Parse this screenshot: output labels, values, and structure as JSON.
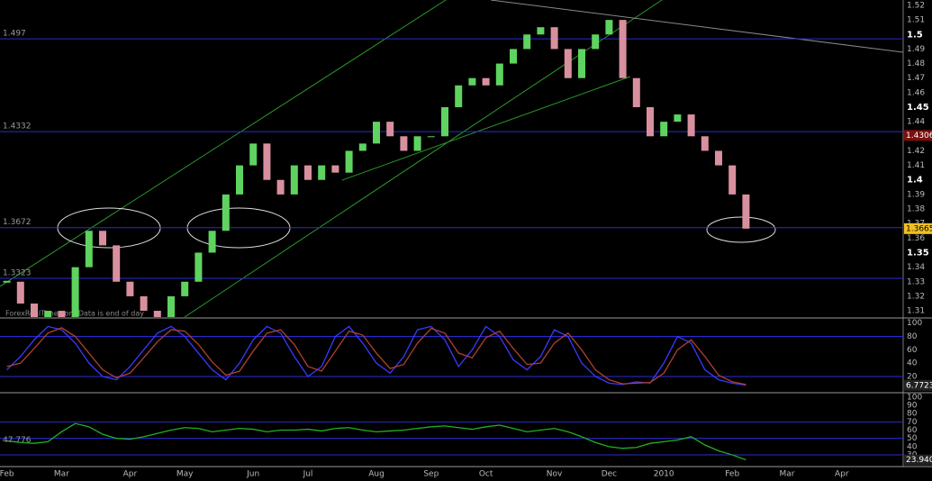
{
  "chart_data": [
    {
      "type": "candlestick",
      "watermark": "ForexRealTime.com  Data is end of day",
      "categories": [
        "Feb",
        null,
        null,
        null,
        "Mar",
        null,
        null,
        null,
        null,
        "Apr",
        null,
        null,
        null,
        "May",
        null,
        null,
        null,
        null,
        "Jun",
        null,
        null,
        null,
        "Jul",
        null,
        null,
        null,
        null,
        "Aug",
        null,
        null,
        null,
        "Sep",
        null,
        null,
        null,
        "Oct",
        null,
        null,
        null,
        null,
        "Nov",
        null,
        null,
        null,
        "Dec",
        null,
        null,
        null,
        "2010",
        null,
        null,
        null,
        null,
        "Feb",
        null,
        null,
        null,
        "Mar",
        null,
        null,
        null,
        "Apr",
        null,
        null,
        null,
        null
      ],
      "values": [
        1.33,
        1.315,
        1.305,
        1.31,
        1.3,
        1.34,
        1.365,
        1.355,
        1.33,
        1.32,
        1.31,
        1.305,
        1.32,
        1.33,
        1.35,
        1.365,
        1.39,
        1.41,
        1.425,
        1.4,
        1.39,
        1.41,
        1.4,
        1.41,
        1.405,
        1.42,
        1.425,
        1.44,
        1.43,
        1.42,
        1.43,
        1.43,
        1.45,
        1.465,
        1.47,
        1.465,
        1.48,
        1.49,
        1.5,
        1.505,
        1.49,
        1.47,
        1.49,
        1.5,
        1.51,
        1.47,
        1.45,
        1.43,
        1.44,
        1.445,
        1.43,
        1.42,
        1.41,
        1.39,
        1.3665,
        null,
        null,
        null,
        null,
        null,
        null,
        null,
        null,
        null,
        null,
        null
      ],
      "up_color": "#5fd35f",
      "down_color": "#d9909e",
      "ylim": [
        1.3057,
        1.5237
      ],
      "yticks": [
        1.31,
        1.32,
        1.33,
        1.34,
        1.35,
        1.36,
        1.37,
        1.38,
        1.39,
        1.4,
        1.41,
        1.42,
        1.43,
        1.44,
        1.45,
        1.46,
        1.47,
        1.48,
        1.49,
        1.5,
        1.51,
        1.52
      ],
      "levels": [
        1.497,
        1.4332,
        1.3672,
        1.3323
      ],
      "level_color": "#2b2bd6",
      "markers": [
        {
          "value": 1.4306,
          "color": "#7a1010"
        },
        {
          "value": 1.3665,
          "color": "#f0c020"
        }
      ]
    },
    {
      "type": "line",
      "series": [
        {
          "color": "#3a3aff",
          "values": [
            30,
            50,
            75,
            95,
            90,
            70,
            40,
            20,
            15,
            35,
            60,
            85,
            95,
            80,
            55,
            30,
            15,
            40,
            75,
            95,
            85,
            50,
            20,
            35,
            80,
            95,
            70,
            40,
            25,
            50,
            90,
            95,
            75,
            35,
            60,
            95,
            80,
            45,
            30,
            50,
            90,
            80,
            40,
            20,
            10,
            8,
            12,
            10,
            40,
            80,
            70,
            30,
            15,
            10,
            7
          ]
        },
        {
          "color": "#b04030",
          "values": [
            35,
            40,
            62,
            85,
            93,
            80,
            55,
            30,
            18,
            25,
            48,
            72,
            90,
            88,
            68,
            42,
            22,
            28,
            58,
            85,
            90,
            68,
            35,
            28,
            58,
            88,
            82,
            55,
            32,
            38,
            70,
            92,
            85,
            55,
            48,
            78,
            88,
            62,
            38,
            40,
            70,
            85,
            60,
            30,
            15,
            9,
            10,
            11,
            25,
            60,
            75,
            50,
            22,
            12,
            8
          ]
        }
      ],
      "ylim": [
        -3,
        105
      ],
      "yticks": [
        20,
        40,
        60,
        80,
        100
      ],
      "levels": [
        80,
        20
      ],
      "last_label": 6.7723
    },
    {
      "type": "line",
      "series": [
        {
          "color": "#22b022",
          "values": [
            47,
            45,
            44,
            46,
            58,
            68,
            64,
            55,
            50,
            49,
            52,
            56,
            60,
            63,
            62,
            58,
            60,
            62,
            61,
            58,
            60,
            60,
            61,
            59,
            62,
            63,
            60,
            58,
            59,
            60,
            62,
            64,
            65,
            63,
            61,
            64,
            66,
            62,
            58,
            60,
            62,
            58,
            52,
            45,
            40,
            38,
            39,
            44,
            46,
            48,
            52,
            42,
            35,
            30,
            24
          ]
        }
      ],
      "ylim": [
        17,
        103
      ],
      "yticks": [
        30,
        40,
        50,
        60,
        70,
        80,
        90,
        100
      ],
      "levels": [
        70,
        50,
        30
      ],
      "first_label": 47.776,
      "last_label": {
        "value": 23.94,
        "label": "23.940"
      }
    }
  ]
}
